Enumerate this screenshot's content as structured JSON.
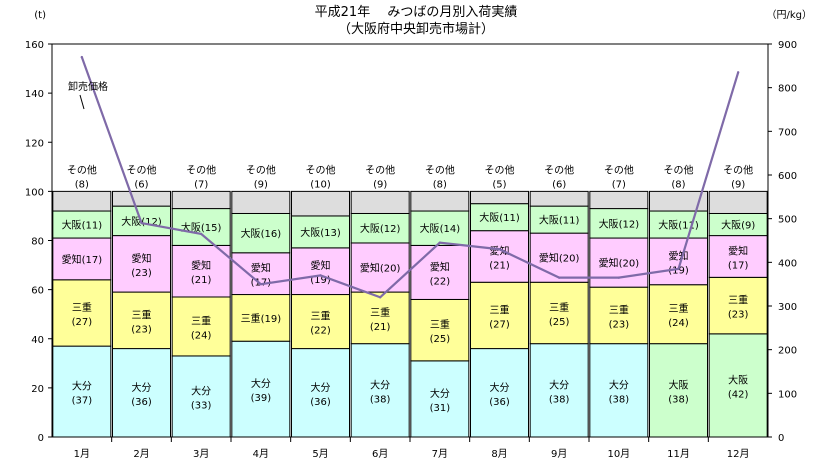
{
  "chart_data": {
    "type": "bar",
    "title": "平成21年　 みつばの月別入荷実績",
    "subtitle": "（大阪府中央卸売市場計）",
    "ylabel_left": "(t)",
    "ylabel_right": "（円/kg）",
    "ylim_left": [
      0,
      160
    ],
    "ylim_right": [
      0,
      900
    ],
    "yticks_left": [
      "0",
      "20",
      "40",
      "60",
      "80",
      "100",
      "120",
      "140",
      "160"
    ],
    "yticks_right": [
      "0",
      "100",
      "200",
      "300",
      "400",
      "500",
      "600",
      "700",
      "800",
      "900"
    ],
    "categories": [
      "1月",
      "2月",
      "3月",
      "4月",
      "5月",
      "6月",
      "7月",
      "8月",
      "9月",
      "10月",
      "11月",
      "12月"
    ],
    "colors": {
      "oita": "#ccffff",
      "mie": "#ffff99",
      "aichi": "#ffccff",
      "osaka": "#ccffcc",
      "other": "#dddddd",
      "line": "#7f6aa8",
      "edge": "#000000"
    },
    "stacks": [
      [
        {
          "key": "oita",
          "name": "大分",
          "value": 37,
          "label": "(37)",
          "layout": "stack"
        },
        {
          "key": "mie",
          "name": "三重",
          "value": 27,
          "label": "(27)",
          "layout": "stack"
        },
        {
          "key": "aichi",
          "name": "愛知",
          "value": 17,
          "label": "(17)",
          "layout": "inline"
        },
        {
          "key": "osaka",
          "name": "大阪",
          "value": 11,
          "label": "(11)",
          "layout": "inline"
        },
        {
          "key": "other",
          "name": "その他",
          "value": 8,
          "label": "(8)",
          "layout": "above"
        }
      ],
      [
        {
          "key": "oita",
          "name": "大分",
          "value": 36,
          "label": "(36)",
          "layout": "stack"
        },
        {
          "key": "mie",
          "name": "三重",
          "value": 23,
          "label": "(23)",
          "layout": "stack"
        },
        {
          "key": "aichi",
          "name": "愛知",
          "value": 23,
          "label": "(23)",
          "layout": "stack"
        },
        {
          "key": "osaka",
          "name": "大阪",
          "value": 12,
          "label": "(12)",
          "layout": "inline"
        },
        {
          "key": "other",
          "name": "その他",
          "value": 6,
          "label": "(6)",
          "layout": "above"
        }
      ],
      [
        {
          "key": "oita",
          "name": "大分",
          "value": 33,
          "label": "(33)",
          "layout": "stack"
        },
        {
          "key": "mie",
          "name": "三重",
          "value": 24,
          "label": "(24)",
          "layout": "stack"
        },
        {
          "key": "aichi",
          "name": "愛知",
          "value": 21,
          "label": "(21)",
          "layout": "stack"
        },
        {
          "key": "osaka",
          "name": "大阪",
          "value": 15,
          "label": "(15)",
          "layout": "inline"
        },
        {
          "key": "other",
          "name": "その他",
          "value": 7,
          "label": "(7)",
          "layout": "above"
        }
      ],
      [
        {
          "key": "oita",
          "name": "大分",
          "value": 39,
          "label": "(39)",
          "layout": "stack"
        },
        {
          "key": "mie",
          "name": "三重",
          "value": 19,
          "label": "(19)",
          "layout": "inline"
        },
        {
          "key": "aichi",
          "name": "愛知",
          "value": 17,
          "label": "(17)",
          "layout": "stack"
        },
        {
          "key": "osaka",
          "name": "大阪",
          "value": 16,
          "label": "(16)",
          "layout": "inline"
        },
        {
          "key": "other",
          "name": "その他",
          "value": 9,
          "label": "(9)",
          "layout": "above"
        }
      ],
      [
        {
          "key": "oita",
          "name": "大分",
          "value": 36,
          "label": "(36)",
          "layout": "stack"
        },
        {
          "key": "mie",
          "name": "三重",
          "value": 22,
          "label": "(22)",
          "layout": "stack"
        },
        {
          "key": "aichi",
          "name": "愛知",
          "value": 19,
          "label": "(19)",
          "layout": "stack"
        },
        {
          "key": "osaka",
          "name": "大阪",
          "value": 13,
          "label": "(13)",
          "layout": "inline"
        },
        {
          "key": "other",
          "name": "その他",
          "value": 10,
          "label": "(10)",
          "layout": "above"
        }
      ],
      [
        {
          "key": "oita",
          "name": "大分",
          "value": 38,
          "label": "(38)",
          "layout": "stack"
        },
        {
          "key": "mie",
          "name": "三重",
          "value": 21,
          "label": "(21)",
          "layout": "stack"
        },
        {
          "key": "aichi",
          "name": "愛知",
          "value": 20,
          "label": "(20)",
          "layout": "inline"
        },
        {
          "key": "osaka",
          "name": "大阪",
          "value": 12,
          "label": "(12)",
          "layout": "inline"
        },
        {
          "key": "other",
          "name": "その他",
          "value": 9,
          "label": "(9)",
          "layout": "above"
        }
      ],
      [
        {
          "key": "oita",
          "name": "大分",
          "value": 31,
          "label": "(31)",
          "layout": "stack"
        },
        {
          "key": "mie",
          "name": "三重",
          "value": 25,
          "label": "(25)",
          "layout": "stack"
        },
        {
          "key": "aichi",
          "name": "愛知",
          "value": 22,
          "label": "(22)",
          "layout": "stack"
        },
        {
          "key": "osaka",
          "name": "大阪",
          "value": 14,
          "label": "(14)",
          "layout": "inline"
        },
        {
          "key": "other",
          "name": "その他",
          "value": 8,
          "label": "(8)",
          "layout": "above"
        }
      ],
      [
        {
          "key": "oita",
          "name": "大分",
          "value": 36,
          "label": "(36)",
          "layout": "stack"
        },
        {
          "key": "mie",
          "name": "三重",
          "value": 27,
          "label": "(27)",
          "layout": "stack"
        },
        {
          "key": "aichi",
          "name": "愛知",
          "value": 21,
          "label": "(21)",
          "layout": "stack"
        },
        {
          "key": "osaka",
          "name": "大阪",
          "value": 11,
          "label": "(11)",
          "layout": "inline"
        },
        {
          "key": "other",
          "name": "その他",
          "value": 5,
          "label": "(5)",
          "layout": "above"
        }
      ],
      [
        {
          "key": "oita",
          "name": "大分",
          "value": 38,
          "label": "(38)",
          "layout": "stack"
        },
        {
          "key": "mie",
          "name": "三重",
          "value": 25,
          "label": "(25)",
          "layout": "stack"
        },
        {
          "key": "aichi",
          "name": "愛知",
          "value": 20,
          "label": "(20)",
          "layout": "inline"
        },
        {
          "key": "osaka",
          "name": "大阪",
          "value": 11,
          "label": "(11)",
          "layout": "inline"
        },
        {
          "key": "other",
          "name": "その他",
          "value": 6,
          "label": "(6)",
          "layout": "above"
        }
      ],
      [
        {
          "key": "oita",
          "name": "大分",
          "value": 38,
          "label": "(38)",
          "layout": "stack"
        },
        {
          "key": "mie",
          "name": "三重",
          "value": 23,
          "label": "(23)",
          "layout": "stack"
        },
        {
          "key": "aichi",
          "name": "愛知",
          "value": 20,
          "label": "(20)",
          "layout": "inline"
        },
        {
          "key": "osaka",
          "name": "大阪",
          "value": 12,
          "label": "(12)",
          "layout": "inline"
        },
        {
          "key": "other",
          "name": "その他",
          "value": 7,
          "label": "(7)",
          "layout": "above"
        }
      ],
      [
        {
          "key": "osaka",
          "name": "大阪",
          "value": 38,
          "label": "(38)",
          "layout": "stack"
        },
        {
          "key": "mie",
          "name": "三重",
          "value": 24,
          "label": "(24)",
          "layout": "stack"
        },
        {
          "key": "aichi",
          "name": "愛知",
          "value": 19,
          "label": "(19)",
          "layout": "stack"
        },
        {
          "key": "osaka",
          "name": "大阪",
          "value": 11,
          "label": "(11)",
          "layout": "inline"
        },
        {
          "key": "other",
          "name": "その他",
          "value": 8,
          "label": "(8)",
          "layout": "above"
        }
      ],
      [
        {
          "key": "osaka",
          "name": "大阪",
          "value": 42,
          "label": "(42)",
          "layout": "stack"
        },
        {
          "key": "mie",
          "name": "三重",
          "value": 23,
          "label": "(23)",
          "layout": "stack"
        },
        {
          "key": "aichi",
          "name": "愛知",
          "value": 17,
          "label": "(17)",
          "layout": "stack"
        },
        {
          "key": "osaka",
          "name": "大阪",
          "value": 9,
          "label": "(9)",
          "layout": "inline"
        },
        {
          "key": "other",
          "name": "その他",
          "value": 9,
          "label": "(9)",
          "layout": "above"
        }
      ]
    ],
    "price_series": {
      "name": "卸売価格",
      "axis": "right",
      "values": [
        870,
        490,
        465,
        350,
        370,
        320,
        445,
        430,
        365,
        365,
        385,
        835
      ]
    }
  }
}
